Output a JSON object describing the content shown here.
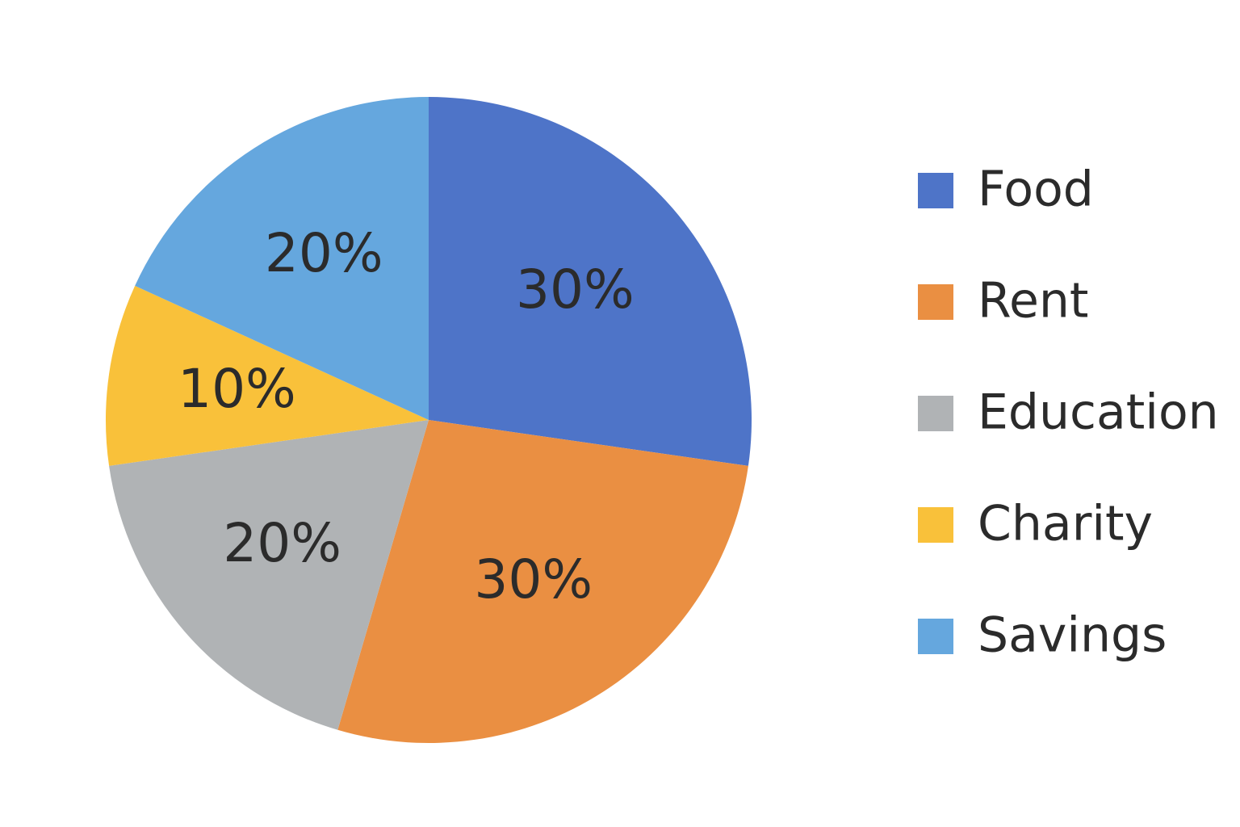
{
  "chart_data": {
    "type": "pie",
    "categories": [
      "Food",
      "Rent",
      "Education",
      "Charity",
      "Savings"
    ],
    "values": [
      30,
      30,
      20,
      10,
      20
    ],
    "value_labels": [
      "30%",
      "30%",
      "20%",
      "10%",
      "20%"
    ],
    "colors": [
      "#4e74c8",
      "#ea8f42",
      "#b0b3b5",
      "#f9c13a",
      "#65a7de"
    ],
    "legend": "right"
  }
}
